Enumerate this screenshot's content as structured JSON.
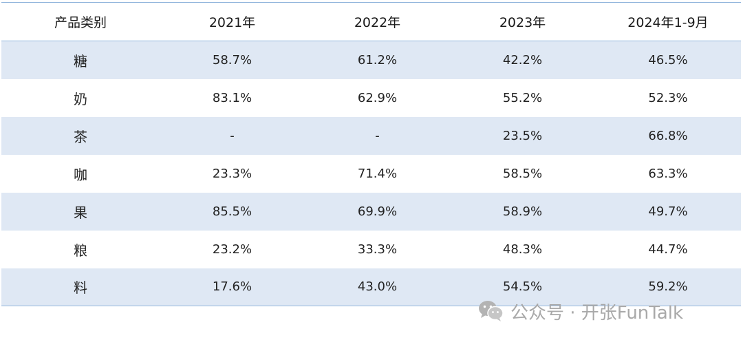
{
  "table": {
    "headers": [
      "产品类别",
      "2021年",
      "2022年",
      "2023年",
      "2024年1-9月"
    ],
    "rows": [
      [
        "糖",
        "58.7%",
        "61.2%",
        "42.2%",
        "46.5%"
      ],
      [
        "奶",
        "83.1%",
        "62.9%",
        "55.2%",
        "52.3%"
      ],
      [
        "茶",
        "-",
        "-",
        "23.5%",
        "66.8%"
      ],
      [
        "咖",
        "23.3%",
        "71.4%",
        "58.5%",
        "63.3%"
      ],
      [
        "果",
        "85.5%",
        "69.9%",
        "58.9%",
        "49.7%"
      ],
      [
        "粮",
        "23.2%",
        "33.3%",
        "48.3%",
        "44.7%"
      ],
      [
        "料",
        "17.6%",
        "43.0%",
        "54.5%",
        "59.2%"
      ]
    ]
  },
  "watermark": {
    "icon": "wechat-icon",
    "text": "公众号 · 开张FunTalk"
  },
  "colors": {
    "header_rule": "#8fb4dc",
    "shaded_row": "#dfe8f4",
    "watermark": "#a9a9a9"
  }
}
